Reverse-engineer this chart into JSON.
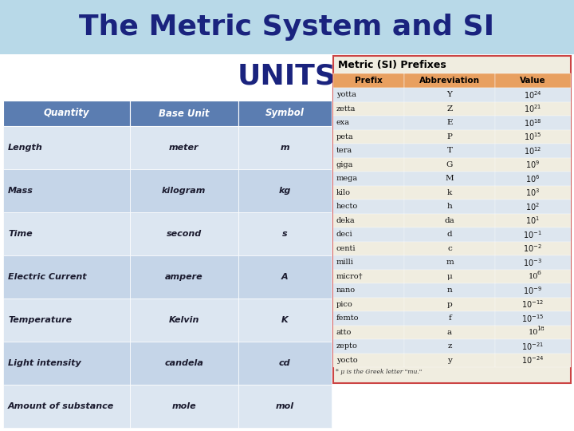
{
  "title_line1": "The Metric System and SI",
  "title_line2": "UNITS",
  "title_bg_color": "#b8d9e8",
  "title_text_color": "#1a237e",
  "page_bg_color": "#ffffff",
  "left_table": {
    "header": [
      "Quantity",
      "Base Unit",
      "Symbol"
    ],
    "header_bg": "#5b7db1",
    "header_text_color": "#ffffff",
    "rows": [
      [
        "Length",
        "meter",
        "m"
      ],
      [
        "Mass",
        "kilogram",
        "kg"
      ],
      [
        "Time",
        "second",
        "s"
      ],
      [
        "Electric Current",
        "ampere",
        "A"
      ],
      [
        "Temperature",
        "Kelvin",
        "K"
      ],
      [
        "Light intensity",
        "candela",
        "cd"
      ],
      [
        "Amount of substance",
        "mole",
        "mol"
      ]
    ],
    "row_colors": [
      "#dce6f1",
      "#c5d5e8",
      "#dce6f1",
      "#c5d5e8",
      "#dce6f1",
      "#c5d5e8",
      "#dce6f1"
    ]
  },
  "right_table": {
    "title": "Metric (SI) Prefixes",
    "title_color": "#000000",
    "header": [
      "Prefix",
      "Abbreviation",
      "Value"
    ],
    "header_bg": "#e8a060",
    "header_text_color": "#000000",
    "rows": [
      [
        "yotta",
        "Y",
        "24"
      ],
      [
        "zetta",
        "Z",
        "21"
      ],
      [
        "exa",
        "E",
        "18"
      ],
      [
        "peta",
        "P",
        "15"
      ],
      [
        "tera",
        "T",
        "12"
      ],
      [
        "giga",
        "G",
        "9"
      ],
      [
        "mega",
        "M",
        "6"
      ],
      [
        "kilo",
        "k",
        "3"
      ],
      [
        "hecto",
        "h",
        "2"
      ],
      [
        "deka",
        "da",
        "1"
      ],
      [
        "deci",
        "d",
        "-1"
      ],
      [
        "centi",
        "c",
        "-2"
      ],
      [
        "milli",
        "m",
        "-3"
      ],
      [
        "micro†",
        "μ",
        " 6"
      ],
      [
        "nano",
        "n",
        "-9"
      ],
      [
        "pico",
        "p",
        "-12"
      ],
      [
        "femto",
        "f",
        "-15"
      ],
      [
        "atto",
        "a",
        " 18"
      ],
      [
        "zepto",
        "z",
        "-21"
      ],
      [
        "yocto",
        "y",
        "-24"
      ]
    ],
    "footnote": "* μ is the Greek letter \"mu.\""
  }
}
